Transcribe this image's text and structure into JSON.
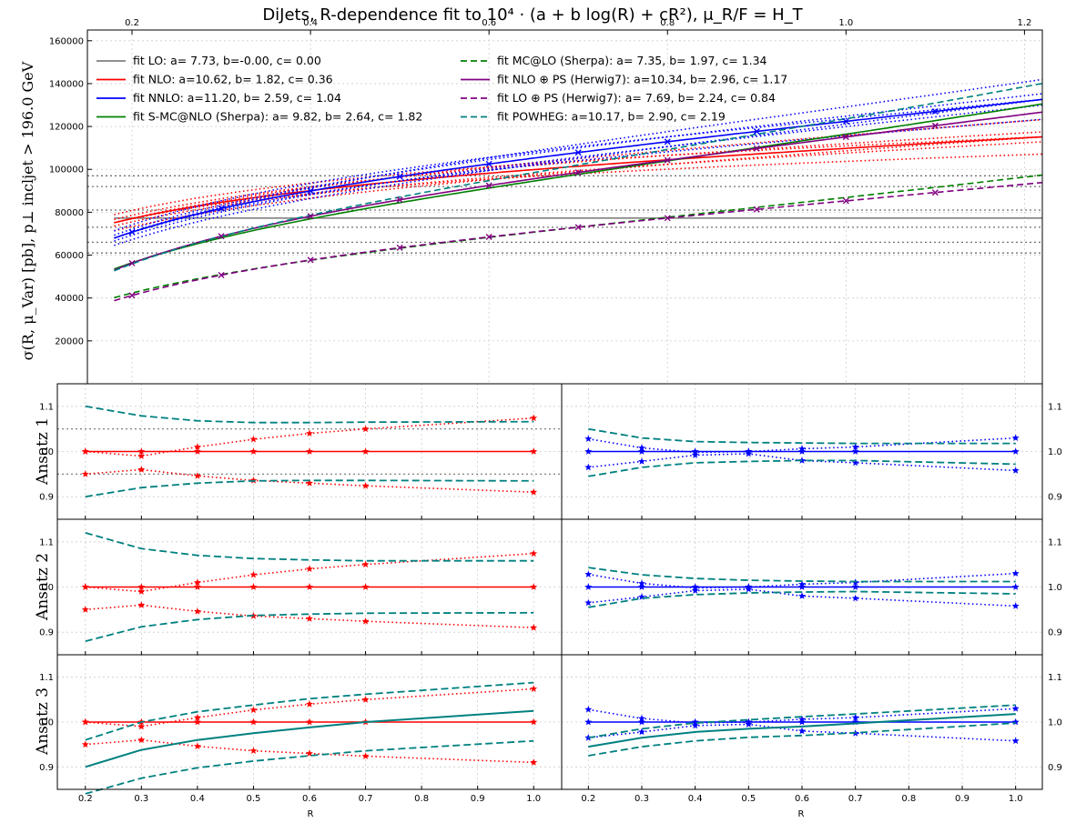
{
  "title": "DiJets, R-dependence fit to 10⁴ · (a + b log(R) + cR²), μ_R/F = H_T",
  "chart_data": [
    {
      "type": "line",
      "panel": "main",
      "ylabel": "σ(R, μ_Var) [pb], p⊥ incljet > 196.0 GeV",
      "ylim": [
        0,
        165000
      ],
      "xlim": [
        0.15,
        1.22
      ],
      "top_xticks": [
        "0.2",
        "0.4",
        "0.6",
        "0.8",
        "1.0",
        "1.2"
      ],
      "yticks": [
        "20000",
        "40000",
        "60000",
        "80000",
        "100000",
        "120000",
        "140000",
        "160000"
      ],
      "grid": true,
      "legend_placement": "top-left, two columns",
      "series": [
        {
          "name": "fit LO: a= 7.73, b=-0.00, c= 0.00",
          "a": 7.73,
          "b": 0.0,
          "c": 0.0,
          "color": "#808080",
          "style": "solid"
        },
        {
          "name": "fit NLO: a=10.62, b= 1.82, c= 0.36",
          "a": 10.62,
          "b": 1.82,
          "c": 0.36,
          "color": "#ff0000",
          "style": "solid"
        },
        {
          "name": "fit NNLO: a=11.20, b= 2.59, c= 1.04",
          "a": 11.2,
          "b": 2.59,
          "c": 1.04,
          "color": "#0000ff",
          "style": "solid"
        },
        {
          "name": "fit S-MC@NLO (Sherpa): a= 9.82, b= 2.64, c= 1.82",
          "a": 9.82,
          "b": 2.64,
          "c": 1.82,
          "color": "#008000",
          "style": "solid"
        },
        {
          "name": "fit MC@LO (Sherpa): a= 7.35, b= 1.97, c= 1.34",
          "a": 7.35,
          "b": 1.97,
          "c": 1.34,
          "color": "#008000",
          "style": "dashed"
        },
        {
          "name": "fit NLO ⊕ PS (Herwig7): a=10.34, b= 2.96, c= 1.17",
          "a": 10.34,
          "b": 2.96,
          "c": 1.17,
          "color": "#800080",
          "style": "solid"
        },
        {
          "name": "fit LO ⊕ PS (Herwig7): a= 7.69, b= 2.24, c= 0.84",
          "a": 7.69,
          "b": 2.24,
          "c": 0.84,
          "color": "#800080",
          "style": "dashed"
        },
        {
          "name": "fit POWHEG: a=10.17, b= 2.90, c= 2.19",
          "a": 10.17,
          "b": 2.9,
          "c": 2.19,
          "color": "#008080",
          "style": "dashed"
        }
      ]
    },
    {
      "type": "line",
      "panel": "ratio",
      "rows": [
        "Ansatz 1",
        "Ansatz 2",
        "Ansatz 3"
      ],
      "xlabel": "R",
      "xlim": [
        0.15,
        1.05
      ],
      "ylim": [
        0.85,
        1.15
      ],
      "xticks": [
        "0.2",
        "0.3",
        "0.4",
        "0.5",
        "0.6",
        "0.7",
        "0.8",
        "0.9",
        "1.0"
      ],
      "yticks": [
        "0.9",
        "1.0",
        "1.1"
      ],
      "R_points": [
        0.2,
        0.3,
        0.4,
        0.5,
        0.6,
        0.7,
        1.0
      ],
      "left_up": [
        1.0,
        0.99,
        1.01,
        1.027,
        1.04,
        1.05,
        1.074
      ],
      "left_down": [
        0.95,
        0.96,
        0.946,
        0.936,
        0.93,
        0.924,
        0.91
      ],
      "right_up": [
        1.028,
        1.008,
        0.998,
        1.0,
        1.006,
        1.01,
        1.03
      ],
      "right_down": [
        0.965,
        0.978,
        0.992,
        0.995,
        0.98,
        0.975,
        0.958
      ],
      "ansatz1_left_band": [
        1.1,
        1.079,
        1.068,
        1.064,
        1.064,
        1.065,
        1.066
      ],
      "ansatz1_left_band_low": [
        0.9,
        0.92,
        0.93,
        0.935,
        0.936,
        0.936,
        0.935
      ],
      "ansatz1_right_band": [
        1.05,
        1.03,
        1.022,
        1.02,
        1.019,
        1.018,
        1.018
      ],
      "ansatz1_right_band_low": [
        0.945,
        0.965,
        0.975,
        0.978,
        0.98,
        0.98,
        0.972
      ],
      "ansatz2_left_band": [
        1.12,
        1.085,
        1.07,
        1.063,
        1.06,
        1.058,
        1.058
      ],
      "ansatz2_left_band_low": [
        0.88,
        0.912,
        0.928,
        0.937,
        0.94,
        0.942,
        0.943
      ],
      "ansatz2_right_band": [
        1.043,
        1.027,
        1.019,
        1.015,
        1.013,
        1.012,
        1.012
      ],
      "ansatz2_right_band_low": [
        0.955,
        0.975,
        0.983,
        0.987,
        0.989,
        0.99,
        0.985
      ],
      "ansatz3_left_mid": [
        0.9,
        0.938,
        0.96,
        0.975,
        0.988,
        1.0,
        1.025
      ],
      "ansatz3_left_band": [
        0.96,
        1.0,
        1.023,
        1.038,
        1.052,
        1.062,
        1.088
      ],
      "ansatz3_left_band_low": [
        0.84,
        0.875,
        0.898,
        0.913,
        0.925,
        0.936,
        0.958
      ],
      "ansatz3_right_mid": [
        0.945,
        0.965,
        0.978,
        0.985,
        0.99,
        0.997,
        1.018
      ],
      "ansatz3_right_band": [
        0.965,
        0.985,
        0.998,
        1.005,
        1.012,
        1.018,
        1.038
      ],
      "ansatz3_right_band_low": [
        0.925,
        0.945,
        0.958,
        0.966,
        0.97,
        0.976,
        0.998
      ]
    }
  ],
  "colors": {
    "red": "#ff0000",
    "blue": "#0000ff",
    "teal": "#008080",
    "grey": "#808080"
  }
}
